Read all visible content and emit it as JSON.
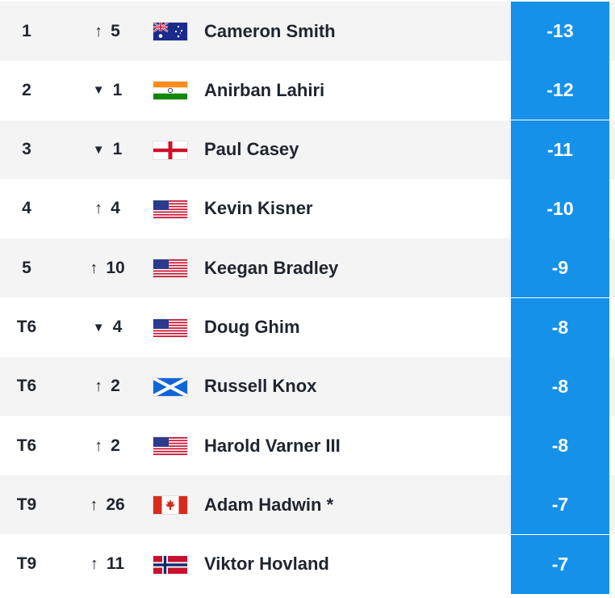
{
  "colors": {
    "score_bg": "#1591ea",
    "row_shade": "#f4f4f4",
    "text": "#1e2530"
  },
  "players": [
    {
      "pos": "1",
      "move_dir": "up",
      "move_icon": "arrow-up-icon",
      "move": "5",
      "flag": "australia-flag-icon",
      "name": "Cameron Smith",
      "score": "-13"
    },
    {
      "pos": "2",
      "move_dir": "down",
      "move_icon": "triangle-down-icon",
      "move": "1",
      "flag": "india-flag-icon",
      "name": "Anirban Lahiri",
      "score": "-12"
    },
    {
      "pos": "3",
      "move_dir": "down",
      "move_icon": "triangle-down-icon",
      "move": "1",
      "flag": "england-flag-icon",
      "name": "Paul Casey",
      "score": "-11"
    },
    {
      "pos": "4",
      "move_dir": "up",
      "move_icon": "arrow-up-icon",
      "move": "4",
      "flag": "usa-flag-icon",
      "name": "Kevin Kisner",
      "score": "-10"
    },
    {
      "pos": "5",
      "move_dir": "up",
      "move_icon": "arrow-up-icon",
      "move": "10",
      "flag": "usa-flag-icon",
      "name": "Keegan Bradley",
      "score": "-9"
    },
    {
      "pos": "T6",
      "move_dir": "down",
      "move_icon": "triangle-down-icon",
      "move": "4",
      "flag": "usa-flag-icon",
      "name": "Doug Ghim",
      "score": "-8"
    },
    {
      "pos": "T6",
      "move_dir": "up",
      "move_icon": "arrow-up-icon",
      "move": "2",
      "flag": "scotland-flag-icon",
      "name": "Russell Knox",
      "score": "-8"
    },
    {
      "pos": "T6",
      "move_dir": "up",
      "move_icon": "arrow-up-icon",
      "move": "2",
      "flag": "usa-flag-icon",
      "name": "Harold Varner III",
      "score": "-8"
    },
    {
      "pos": "T9",
      "move_dir": "up",
      "move_icon": "arrow-up-icon",
      "move": "26",
      "flag": "canada-flag-icon",
      "name": "Adam Hadwin *",
      "score": "-7"
    },
    {
      "pos": "T9",
      "move_dir": "up",
      "move_icon": "arrow-up-icon",
      "move": "11",
      "flag": "norway-flag-icon",
      "name": "Viktor Hovland",
      "score": "-7"
    }
  ]
}
